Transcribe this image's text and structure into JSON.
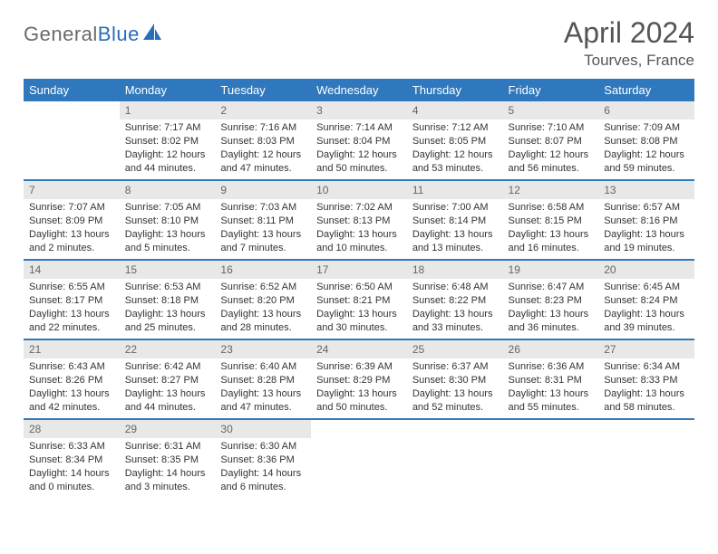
{
  "logo": {
    "part1": "General",
    "part2": "Blue"
  },
  "header": {
    "month": "April 2024",
    "location": "Tourves, France"
  },
  "colors": {
    "header_bg": "#2f78bd",
    "row_border": "#2f78bd",
    "daynum_bg": "#e8e8e8",
    "text": "#333333",
    "logo_gray": "#6a6a6a",
    "logo_blue": "#2a6db8"
  },
  "dayNames": [
    "Sunday",
    "Monday",
    "Tuesday",
    "Wednesday",
    "Thursday",
    "Friday",
    "Saturday"
  ],
  "weeks": [
    [
      {
        "n": "",
        "sunrise": "",
        "sunset": "",
        "daylight": ""
      },
      {
        "n": "1",
        "sunrise": "7:17 AM",
        "sunset": "8:02 PM",
        "daylight": "12 hours and 44 minutes."
      },
      {
        "n": "2",
        "sunrise": "7:16 AM",
        "sunset": "8:03 PM",
        "daylight": "12 hours and 47 minutes."
      },
      {
        "n": "3",
        "sunrise": "7:14 AM",
        "sunset": "8:04 PM",
        "daylight": "12 hours and 50 minutes."
      },
      {
        "n": "4",
        "sunrise": "7:12 AM",
        "sunset": "8:05 PM",
        "daylight": "12 hours and 53 minutes."
      },
      {
        "n": "5",
        "sunrise": "7:10 AM",
        "sunset": "8:07 PM",
        "daylight": "12 hours and 56 minutes."
      },
      {
        "n": "6",
        "sunrise": "7:09 AM",
        "sunset": "8:08 PM",
        "daylight": "12 hours and 59 minutes."
      }
    ],
    [
      {
        "n": "7",
        "sunrise": "7:07 AM",
        "sunset": "8:09 PM",
        "daylight": "13 hours and 2 minutes."
      },
      {
        "n": "8",
        "sunrise": "7:05 AM",
        "sunset": "8:10 PM",
        "daylight": "13 hours and 5 minutes."
      },
      {
        "n": "9",
        "sunrise": "7:03 AM",
        "sunset": "8:11 PM",
        "daylight": "13 hours and 7 minutes."
      },
      {
        "n": "10",
        "sunrise": "7:02 AM",
        "sunset": "8:13 PM",
        "daylight": "13 hours and 10 minutes."
      },
      {
        "n": "11",
        "sunrise": "7:00 AM",
        "sunset": "8:14 PM",
        "daylight": "13 hours and 13 minutes."
      },
      {
        "n": "12",
        "sunrise": "6:58 AM",
        "sunset": "8:15 PM",
        "daylight": "13 hours and 16 minutes."
      },
      {
        "n": "13",
        "sunrise": "6:57 AM",
        "sunset": "8:16 PM",
        "daylight": "13 hours and 19 minutes."
      }
    ],
    [
      {
        "n": "14",
        "sunrise": "6:55 AM",
        "sunset": "8:17 PM",
        "daylight": "13 hours and 22 minutes."
      },
      {
        "n": "15",
        "sunrise": "6:53 AM",
        "sunset": "8:18 PM",
        "daylight": "13 hours and 25 minutes."
      },
      {
        "n": "16",
        "sunrise": "6:52 AM",
        "sunset": "8:20 PM",
        "daylight": "13 hours and 28 minutes."
      },
      {
        "n": "17",
        "sunrise": "6:50 AM",
        "sunset": "8:21 PM",
        "daylight": "13 hours and 30 minutes."
      },
      {
        "n": "18",
        "sunrise": "6:48 AM",
        "sunset": "8:22 PM",
        "daylight": "13 hours and 33 minutes."
      },
      {
        "n": "19",
        "sunrise": "6:47 AM",
        "sunset": "8:23 PM",
        "daylight": "13 hours and 36 minutes."
      },
      {
        "n": "20",
        "sunrise": "6:45 AM",
        "sunset": "8:24 PM",
        "daylight": "13 hours and 39 minutes."
      }
    ],
    [
      {
        "n": "21",
        "sunrise": "6:43 AM",
        "sunset": "8:26 PM",
        "daylight": "13 hours and 42 minutes."
      },
      {
        "n": "22",
        "sunrise": "6:42 AM",
        "sunset": "8:27 PM",
        "daylight": "13 hours and 44 minutes."
      },
      {
        "n": "23",
        "sunrise": "6:40 AM",
        "sunset": "8:28 PM",
        "daylight": "13 hours and 47 minutes."
      },
      {
        "n": "24",
        "sunrise": "6:39 AM",
        "sunset": "8:29 PM",
        "daylight": "13 hours and 50 minutes."
      },
      {
        "n": "25",
        "sunrise": "6:37 AM",
        "sunset": "8:30 PM",
        "daylight": "13 hours and 52 minutes."
      },
      {
        "n": "26",
        "sunrise": "6:36 AM",
        "sunset": "8:31 PM",
        "daylight": "13 hours and 55 minutes."
      },
      {
        "n": "27",
        "sunrise": "6:34 AM",
        "sunset": "8:33 PM",
        "daylight": "13 hours and 58 minutes."
      }
    ],
    [
      {
        "n": "28",
        "sunrise": "6:33 AM",
        "sunset": "8:34 PM",
        "daylight": "14 hours and 0 minutes."
      },
      {
        "n": "29",
        "sunrise": "6:31 AM",
        "sunset": "8:35 PM",
        "daylight": "14 hours and 3 minutes."
      },
      {
        "n": "30",
        "sunrise": "6:30 AM",
        "sunset": "8:36 PM",
        "daylight": "14 hours and 6 minutes."
      },
      {
        "n": "",
        "sunrise": "",
        "sunset": "",
        "daylight": ""
      },
      {
        "n": "",
        "sunrise": "",
        "sunset": "",
        "daylight": ""
      },
      {
        "n": "",
        "sunrise": "",
        "sunset": "",
        "daylight": ""
      },
      {
        "n": "",
        "sunrise": "",
        "sunset": "",
        "daylight": ""
      }
    ]
  ],
  "labels": {
    "sunrise": "Sunrise: ",
    "sunset": "Sunset: ",
    "daylight": "Daylight: "
  }
}
